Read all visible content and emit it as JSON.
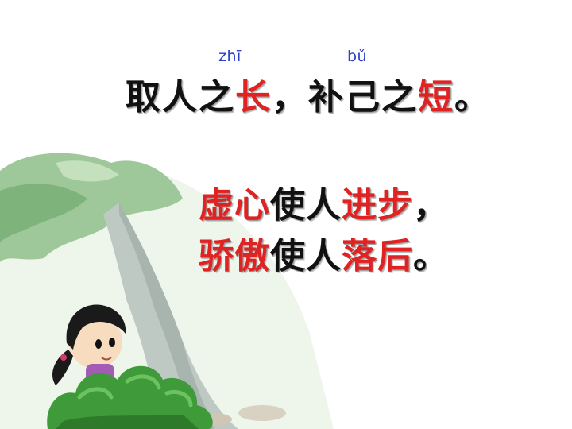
{
  "slide": {
    "pinyin": {
      "zhi": "zhī",
      "bu": "bǔ"
    },
    "line1": {
      "a": "取人之",
      "b": "长",
      "c": "，补己之",
      "d": "短",
      "e": "。"
    },
    "line2": {
      "a": "虚心",
      "b": "使人",
      "c": "进步",
      "d": "，"
    },
    "line3": {
      "a": "骄傲",
      "b": "使人",
      "c": "落后",
      "d": "。"
    }
  },
  "colors": {
    "highlight": "#e02222",
    "text": "#111111",
    "pinyin": "#2b3fc7",
    "foliage": "#8fbf8a",
    "bush": "#3f9a3a"
  },
  "illustration": {
    "subject": "girl-hiding-behind-bush-under-tree"
  }
}
